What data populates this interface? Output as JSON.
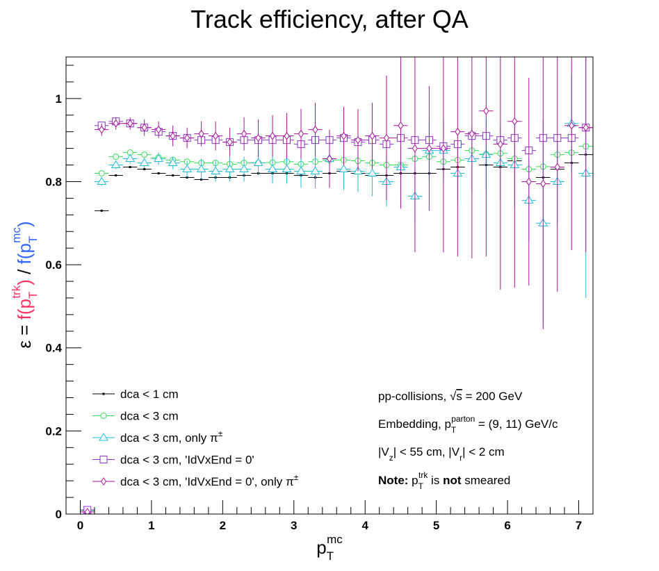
{
  "chart_data": {
    "type": "scatter",
    "title": "Track efficiency, after QA",
    "xlabel": {
      "base": "p",
      "sub": "T",
      "sup": "mc"
    },
    "ylabel": {
      "prefix": "ε = ",
      "num": {
        "text": "f(p",
        "sub": "T",
        "sup": "trk",
        "close": ")"
      },
      "slash": " / ",
      "den": {
        "text": "f(p",
        "sub": "T",
        "sup": "mc",
        "close": ")"
      },
      "num_color": "#ff3366",
      "den_color": "#3366ff"
    },
    "xlim": [
      -0.2,
      7.2
    ],
    "ylim": [
      0,
      1.1
    ],
    "xticks": [
      0,
      1,
      2,
      3,
      4,
      5,
      6,
      7
    ],
    "xtick_labels": [
      "0",
      "1",
      "2",
      "3",
      "4",
      "5",
      "6",
      "7"
    ],
    "yticks": [
      0,
      0.2,
      0.4,
      0.6,
      0.8,
      1.0
    ],
    "ytick_labels": [
      "0",
      "0.2",
      "0.4",
      "0.6",
      "0.8",
      "1"
    ],
    "grid": false,
    "legend_position": "bottom-left",
    "series": [
      {
        "name": "dca < 1 cm",
        "color": "#000000",
        "marker": "dot",
        "x": [
          0.1,
          0.3,
          0.5,
          0.7,
          0.9,
          1.1,
          1.3,
          1.5,
          1.7,
          1.9,
          2.1,
          2.3,
          2.5,
          2.7,
          2.9,
          3.1,
          3.3,
          3.5,
          3.7,
          3.9,
          4.1,
          4.3,
          4.5,
          4.7,
          4.9,
          5.1,
          5.3,
          5.5,
          5.7,
          5.9,
          6.1,
          6.3,
          6.5,
          6.7,
          6.9,
          7.1
        ],
        "y": [
          0.005,
          0.73,
          0.815,
          0.835,
          0.83,
          0.82,
          0.815,
          0.81,
          0.805,
          0.81,
          0.81,
          0.815,
          0.82,
          0.82,
          0.82,
          0.815,
          0.81,
          0.82,
          0.825,
          0.82,
          0.815,
          0.815,
          0.82,
          0.82,
          0.82,
          0.83,
          0.835,
          0.855,
          0.84,
          0.835,
          0.85,
          0.8,
          0.81,
          0.83,
          0.845,
          0.865
        ],
        "yerr": [
          0.003,
          0.002,
          0.002,
          0.002,
          0.002,
          0.002,
          0.002,
          0.002,
          0.002,
          0.002,
          0.002,
          0.002,
          0.002,
          0.002,
          0.002,
          0.002,
          0.002,
          0.002,
          0.002,
          0.002,
          0.002,
          0.002,
          0.002,
          0.002,
          0.002,
          0.002,
          0.002,
          0.002,
          0.002,
          0.002,
          0.002,
          0.002,
          0.002,
          0.002,
          0.002,
          0.002
        ]
      },
      {
        "name": "dca < 3 cm",
        "color": "#33dd55",
        "marker": "circle",
        "x": [
          0.1,
          0.3,
          0.5,
          0.7,
          0.9,
          1.1,
          1.3,
          1.5,
          1.7,
          1.9,
          2.1,
          2.3,
          2.5,
          2.7,
          2.9,
          3.1,
          3.3,
          3.5,
          3.7,
          3.9,
          4.1,
          4.3,
          4.5,
          4.7,
          4.9,
          5.1,
          5.3,
          5.5,
          5.7,
          5.9,
          6.1,
          6.3,
          6.5,
          6.7,
          6.9,
          7.1
        ],
        "y": [
          0.008,
          0.82,
          0.86,
          0.87,
          0.865,
          0.858,
          0.852,
          0.848,
          0.845,
          0.845,
          0.842,
          0.845,
          0.845,
          0.846,
          0.848,
          0.842,
          0.848,
          0.852,
          0.852,
          0.85,
          0.845,
          0.84,
          0.84,
          0.855,
          0.86,
          0.848,
          0.852,
          0.875,
          0.866,
          0.868,
          0.855,
          0.83,
          0.836,
          0.865,
          0.87,
          0.885
        ],
        "yerr": [
          0.003,
          0.003,
          0.003,
          0.003,
          0.003,
          0.003,
          0.003,
          0.003,
          0.003,
          0.003,
          0.003,
          0.003,
          0.003,
          0.003,
          0.003,
          0.003,
          0.003,
          0.003,
          0.003,
          0.003,
          0.003,
          0.003,
          0.003,
          0.003,
          0.003,
          0.003,
          0.003,
          0.003,
          0.003,
          0.003,
          0.003,
          0.003,
          0.003,
          0.003,
          0.003,
          0.003
        ]
      },
      {
        "name": "dca < 3 cm, only π±",
        "color": "#22bbdd",
        "marker": "triangle",
        "x": [
          0.1,
          0.3,
          0.5,
          0.7,
          0.9,
          1.1,
          1.3,
          1.5,
          1.7,
          1.9,
          2.1,
          2.3,
          2.5,
          2.7,
          2.9,
          3.1,
          3.3,
          3.5,
          3.7,
          3.9,
          4.1,
          4.3,
          4.5,
          4.7,
          4.9,
          5.1,
          5.3,
          5.5,
          5.7,
          5.9,
          6.1,
          6.3,
          6.5,
          6.7,
          6.9,
          7.1
        ],
        "y": [
          0.005,
          0.8,
          0.84,
          0.855,
          0.845,
          0.855,
          0.845,
          0.83,
          0.83,
          0.825,
          0.83,
          0.83,
          0.845,
          0.83,
          0.83,
          0.825,
          0.825,
          0.855,
          0.83,
          0.825,
          0.82,
          0.8,
          0.835,
          0.765,
          0.875,
          0.875,
          0.82,
          0.855,
          0.865,
          0.845,
          0.84,
          0.755,
          0.7,
          0.8,
          0.94,
          0.82
        ],
        "yerr": [
          0.003,
          0.01,
          0.01,
          0.012,
          0.012,
          0.015,
          0.015,
          0.02,
          0.025,
          0.025,
          0.03,
          0.03,
          0.03,
          0.035,
          0.035,
          0.04,
          0.04,
          0.045,
          0.05,
          0.05,
          0.055,
          0.06,
          0.06,
          0.065,
          0.07,
          0.075,
          0.075,
          0.08,
          0.085,
          0.09,
          0.1,
          0.1,
          0.25,
          0.1,
          0.12,
          0.3
        ]
      },
      {
        "name": "dca < 3 cm, 'IdVxEnd = 0'",
        "color": "#8833cc",
        "marker": "square",
        "x": [
          0.1,
          0.3,
          0.5,
          0.7,
          0.9,
          1.1,
          1.3,
          1.5,
          1.7,
          1.9,
          2.1,
          2.3,
          2.5,
          2.7,
          2.9,
          3.1,
          3.3,
          3.5,
          3.7,
          3.9,
          4.1,
          4.3,
          4.5,
          4.7,
          4.9,
          5.1,
          5.3,
          5.5,
          5.7,
          5.9,
          6.1,
          6.3,
          6.5,
          6.7,
          6.9,
          7.1
        ],
        "y": [
          0.01,
          0.935,
          0.945,
          0.94,
          0.93,
          0.92,
          0.91,
          0.905,
          0.9,
          0.9,
          0.895,
          0.9,
          0.9,
          0.9,
          0.9,
          0.89,
          0.9,
          0.9,
          0.905,
          0.895,
          0.9,
          0.89,
          0.905,
          0.9,
          0.9,
          0.885,
          0.89,
          0.91,
          0.91,
          0.9,
          0.905,
          0.875,
          0.905,
          0.905,
          0.905,
          0.93
        ],
        "yerr": [
          0.003,
          0.003,
          0.003,
          0.003,
          0.003,
          0.003,
          0.003,
          0.003,
          0.003,
          0.003,
          0.003,
          0.003,
          0.003,
          0.003,
          0.003,
          0.003,
          0.003,
          0.003,
          0.003,
          0.003,
          0.003,
          0.003,
          0.003,
          0.003,
          0.003,
          0.003,
          0.003,
          0.003,
          0.003,
          0.003,
          0.003,
          0.003,
          0.003,
          0.003,
          0.003,
          0.003
        ]
      },
      {
        "name": "dca < 3 cm, 'IdVxEnd = 0', only π±",
        "color": "#aa1199",
        "marker": "diamond",
        "x": [
          0.1,
          0.3,
          0.5,
          0.7,
          0.9,
          1.1,
          1.3,
          1.5,
          1.7,
          1.9,
          2.1,
          2.3,
          2.5,
          2.7,
          2.9,
          3.1,
          3.3,
          3.5,
          3.7,
          3.9,
          4.1,
          4.3,
          4.5,
          4.7,
          4.9,
          5.1,
          5.3,
          5.5,
          5.7,
          5.9,
          6.1,
          6.3,
          6.5,
          6.7,
          6.9,
          7.1
        ],
        "y": [
          0.005,
          0.925,
          0.94,
          0.94,
          0.93,
          0.925,
          0.91,
          0.905,
          0.915,
          0.91,
          0.895,
          0.915,
          0.905,
          0.91,
          0.91,
          0.915,
          0.925,
          0.855,
          0.91,
          0.9,
          0.91,
          0.905,
          0.935,
          0.88,
          0.88,
          0.88,
          0.92,
          0.915,
          0.97,
          0.89,
          0.945,
          0.8,
          0.795,
          0.835,
          0.935,
          0.93
        ],
        "yerr": [
          0.003,
          0.015,
          0.015,
          0.015,
          0.02,
          0.02,
          0.025,
          0.025,
          0.03,
          0.035,
          0.035,
          0.04,
          0.045,
          0.05,
          0.055,
          0.06,
          0.065,
          0.07,
          0.07,
          0.075,
          0.08,
          0.15,
          0.2,
          0.25,
          0.15,
          0.25,
          0.3,
          0.3,
          0.35,
          0.35,
          0.4,
          0.25,
          0.35,
          0.3,
          0.3,
          0.3
        ]
      }
    ],
    "annotations": [
      {
        "segments": [
          {
            "t": "pp-collisions, "
          },
          {
            "t": "√",
            "kind": "sqrt"
          },
          {
            "t": "s",
            "kind": "over"
          },
          {
            "t": " = 200 GeV"
          }
        ]
      },
      {
        "segments": [
          {
            "t": "Embedding, p"
          },
          {
            "t": "T",
            "kind": "sub"
          },
          {
            "t": "parton",
            "kind": "sup"
          },
          {
            "t": " = (9, 11) GeV/c"
          }
        ]
      },
      {
        "segments": [
          {
            "t": "|V"
          },
          {
            "t": "z",
            "kind": "sub"
          },
          {
            "t": "| < 55 cm, |V"
          },
          {
            "t": "r",
            "kind": "sub"
          },
          {
            "t": "| < 2 cm"
          }
        ]
      },
      {
        "segments": [
          {
            "t": "Note:",
            "kind": "bold"
          },
          {
            "t": " p"
          },
          {
            "t": "T",
            "kind": "sub"
          },
          {
            "t": "trk",
            "kind": "sup"
          },
          {
            "t": " is "
          },
          {
            "t": "not",
            "kind": "bold"
          },
          {
            "t": " smeared"
          }
        ]
      }
    ]
  }
}
